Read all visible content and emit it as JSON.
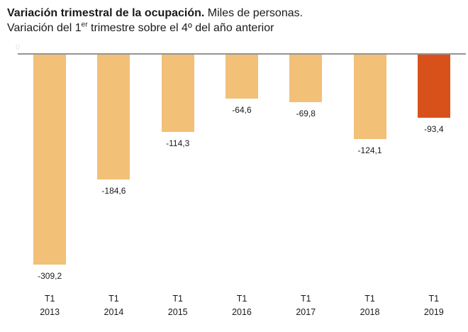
{
  "header": {
    "title_bold": "Variación trimestral de la ocupación.",
    "title_regular": " Miles de personas.",
    "subtitle_before_sup": "Variación del 1",
    "subtitle_sup": "er",
    "subtitle_after_sup": " trimestre sobre el 4º del año anterior"
  },
  "chart_data": {
    "type": "bar",
    "title": "Variación trimestral de la ocupación. Miles de personas.",
    "subtitle": "Variación del 1er trimestre sobre el 4º del año anterior",
    "categories": [
      "T1 2013",
      "T1 2014",
      "T1 2015",
      "T1 2016",
      "T1 2017",
      "T1 2018",
      "T1 2019"
    ],
    "x_tick_line1": [
      "T1",
      "T1",
      "T1",
      "T1",
      "T1",
      "T1",
      "T1"
    ],
    "x_tick_line2": [
      "2013",
      "2014",
      "2015",
      "2016",
      "2017",
      "2018",
      "2019"
    ],
    "values": [
      -309.2,
      -184.6,
      -114.3,
      -64.6,
      -69.8,
      -124.1,
      -93.4
    ],
    "value_labels": [
      "-309,2",
      "-184,6",
      "-114,3",
      "-64,6",
      "-69,8",
      "-124,1",
      "-93,4"
    ],
    "ylabel": "Miles de personas",
    "ylim": [
      -340,
      0
    ],
    "baseline_label": "0",
    "bar_color": "#F2C077",
    "highlight_color": "#D8511B",
    "highlight_index": 6,
    "axis_color": "#949494",
    "grid": false,
    "legend": false
  }
}
